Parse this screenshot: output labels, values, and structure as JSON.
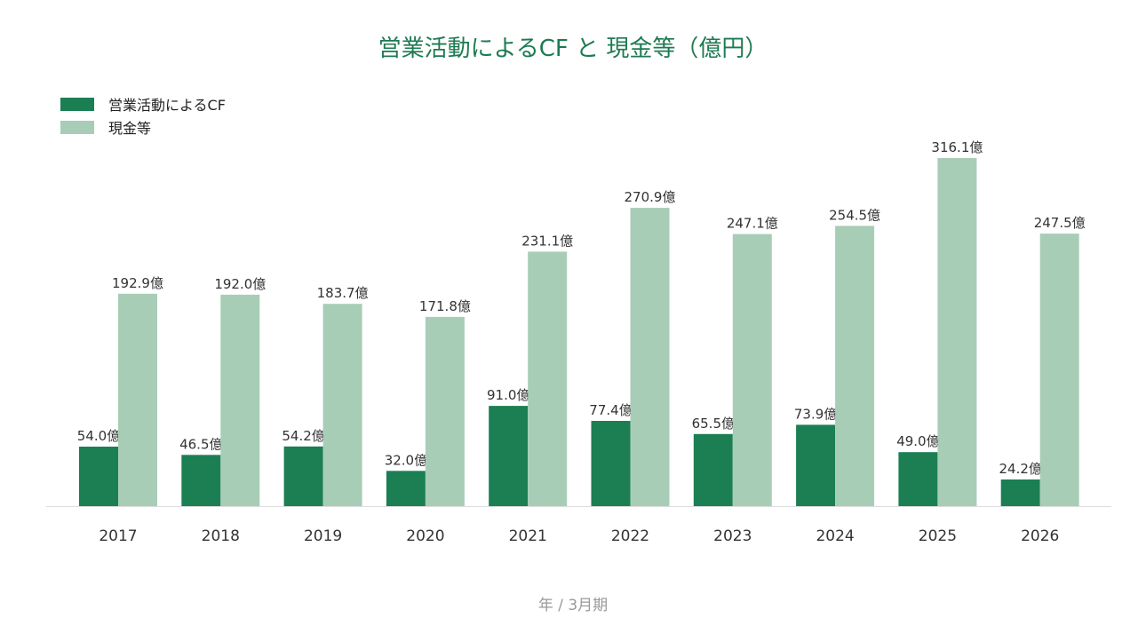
{
  "chart_data": {
    "type": "bar",
    "title": "営業活動によるCF と 現金等（億円）",
    "xlabel": "年 / 3月期",
    "ylabel": "",
    "categories": [
      "2017",
      "2018",
      "2019",
      "2020",
      "2021",
      "2022",
      "2023",
      "2024",
      "2025",
      "2026"
    ],
    "series": [
      {
        "name": "営業活動によるCF",
        "color": "#1b7f53",
        "values": [
          54.0,
          46.5,
          54.2,
          32.0,
          91.0,
          77.4,
          65.5,
          73.9,
          49.0,
          24.2
        ]
      },
      {
        "name": "現金等",
        "color": "#a8cdb7",
        "values": [
          192.9,
          192.0,
          183.7,
          171.8,
          231.1,
          270.9,
          247.1,
          254.5,
          316.1,
          247.5
        ]
      }
    ],
    "value_suffix": "億",
    "ylim": [
      0,
      330
    ],
    "grid": false,
    "legend_position": "top-left",
    "axis_line_color": "#dddddd"
  }
}
